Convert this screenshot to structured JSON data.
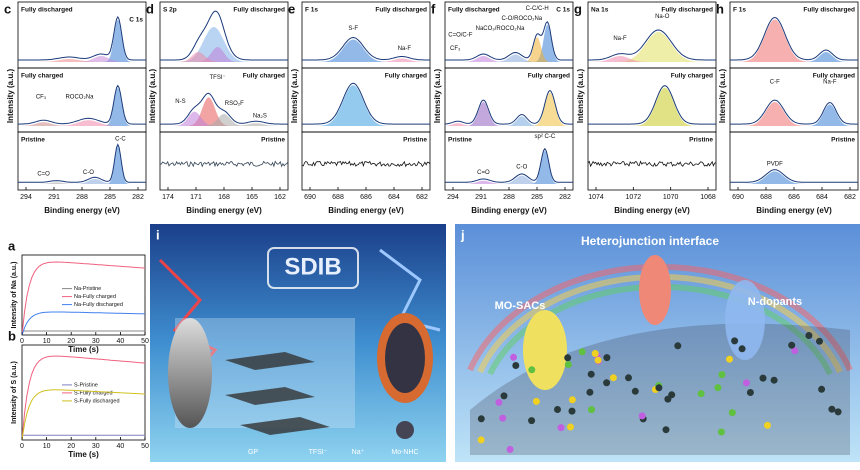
{
  "spectra": [
    {
      "label": "c",
      "core": "C 1s",
      "states": [
        "Fully discharged",
        "Fully charged",
        "Pristine"
      ],
      "peaks": [
        "CF₃",
        "ROCO₂Na",
        "C-C",
        "C=O",
        "C-O"
      ],
      "ticks": [
        294,
        291,
        288,
        285,
        282
      ]
    },
    {
      "label": "d",
      "core": "S 2p",
      "states": [
        "Fully discharged",
        "Fully charged",
        "Pristine"
      ],
      "peaks": [
        "N-S",
        "TFSI⁻",
        "RSO₂F",
        "Na₂S"
      ],
      "ticks": [
        174,
        171,
        168,
        165,
        162
      ]
    },
    {
      "label": "e",
      "core": "F 1s",
      "states": [
        "Fully discharged",
        "Fully charged",
        "Pristine"
      ],
      "peaks": [
        "S-F",
        "Na-F"
      ],
      "ticks": [
        690,
        688,
        686,
        684,
        682
      ]
    },
    {
      "label": "f",
      "core": "C 1s",
      "states": [
        "Fully discharged",
        "Fully charged",
        "Pristine"
      ],
      "peaks": [
        "C=O/C-F",
        "CF₃",
        "NaCO₃/ROCO₂Na",
        "C-O/ROCO₂Na",
        "C-C/C-H",
        "sp² C-C",
        "C=O",
        "C-O"
      ],
      "ticks": [
        294,
        291,
        288,
        285,
        282
      ]
    },
    {
      "label": "g",
      "core": "Na 1s",
      "states": [
        "Fully discharged",
        "Fully charged",
        "Pristine"
      ],
      "peaks": [
        "Na-F",
        "Na-O"
      ],
      "ticks": [
        1074,
        1072,
        1070,
        1068
      ]
    },
    {
      "label": "h",
      "core": "F 1s",
      "states": [
        "Fully discharged",
        "Fully charged",
        "Pristine"
      ],
      "peaks": [
        "C-F",
        "Na-F",
        "PVDF"
      ],
      "ticks": [
        690,
        688,
        686,
        684,
        682
      ]
    }
  ],
  "spectra_axes": {
    "xlabel": "Binding energy (eV)",
    "ylabel": "Intensity (a.u.)"
  },
  "kinetics": [
    {
      "label": "a",
      "ylabel": "Intensity of Na (a.u.)",
      "legend": [
        "Na-Pristine",
        "Na-Fully charged",
        "Na-Fully discharged"
      ]
    },
    {
      "label": "b",
      "ylabel": "Intensity of S (a.u.)",
      "legend": [
        "S-Pristine",
        "S-Fully charged",
        "S-Fully discharged"
      ]
    }
  ],
  "kinetics_axes": {
    "xlabel": "Time (s)",
    "ticks": [
      0,
      10,
      20,
      30,
      40,
      50
    ]
  },
  "panel_i": {
    "label": "i",
    "logo": "SDIB",
    "labels": [
      "GP",
      "TFSI⁻",
      "Na⁺",
      "Mo-NHC"
    ]
  },
  "panel_j": {
    "label": "j",
    "labels": [
      "Heterojunction interface",
      "MO-SACs",
      "N-dopants"
    ]
  }
}
